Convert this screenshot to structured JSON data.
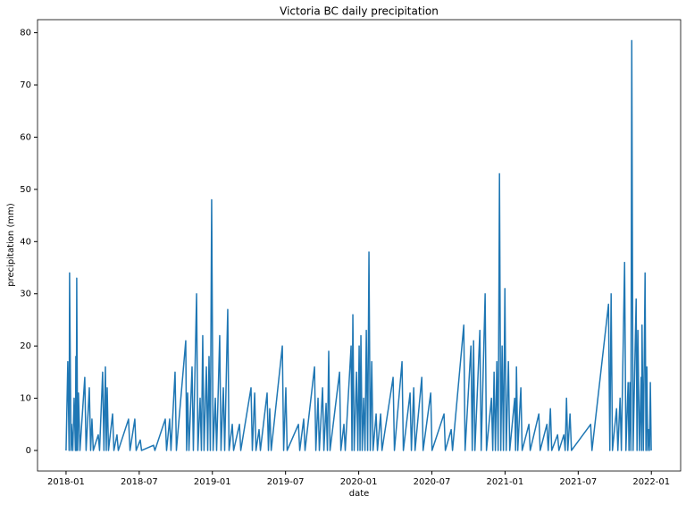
{
  "chart_data": {
    "type": "line",
    "title": "Victoria BC daily precipitation",
    "x_label": "date",
    "y_label": "precipitation (mm)",
    "x": [
      2018.0,
      2018.012,
      2018.021,
      2018.024,
      2018.034,
      2018.037,
      2018.046,
      2018.055,
      2018.064,
      2018.067,
      2018.07,
      2018.073,
      2018.079,
      2018.085,
      2018.095,
      2018.128,
      2018.137,
      2018.159,
      2018.168,
      2018.177,
      2018.186,
      2018.22,
      2018.229,
      2018.25,
      2018.259,
      2018.269,
      2018.275,
      2018.281,
      2018.29,
      2018.318,
      2018.327,
      2018.348,
      2018.357,
      2018.427,
      2018.437,
      2018.47,
      2018.479,
      2018.507,
      2018.516,
      2018.598,
      2018.607,
      2018.678,
      2018.687,
      2018.708,
      2018.717,
      2018.745,
      2018.754,
      2018.818,
      2018.824,
      2018.831,
      2018.84,
      2018.861,
      2018.87,
      2018.892,
      2018.901,
      2018.916,
      2018.925,
      2018.934,
      2018.943,
      2018.959,
      2018.968,
      2018.977,
      2018.986,
      2018.995,
      2019.005,
      2019.02,
      2019.029,
      2019.05,
      2019.059,
      2019.075,
      2019.084,
      2019.105,
      2019.114,
      2019.136,
      2019.145,
      2019.185,
      2019.194,
      2019.264,
      2019.273,
      2019.289,
      2019.298,
      2019.319,
      2019.328,
      2019.374,
      2019.383,
      2019.392,
      2019.402,
      2019.478,
      2019.487,
      2019.502,
      2019.511,
      2019.588,
      2019.597,
      2019.624,
      2019.633,
      2019.698,
      2019.707,
      2019.722,
      2019.731,
      2019.753,
      2019.762,
      2019.777,
      2019.786,
      2019.795,
      2019.804,
      2019.869,
      2019.878,
      2019.899,
      2019.908,
      2019.948,
      2019.954,
      2019.96,
      2019.969,
      2019.985,
      2019.994,
      2020.003,
      2020.009,
      2020.015,
      2020.024,
      2020.034,
      2020.043,
      2020.052,
      2020.061,
      2020.07,
      2020.079,
      2020.089,
      2020.098,
      2020.119,
      2020.128,
      2020.15,
      2020.159,
      2020.235,
      2020.244,
      2020.296,
      2020.305,
      2020.351,
      2020.36,
      2020.376,
      2020.385,
      2020.431,
      2020.44,
      2020.492,
      2020.501,
      2020.583,
      2020.592,
      2020.632,
      2020.641,
      2020.718,
      2020.727,
      2020.767,
      2020.776,
      2020.785,
      2020.794,
      2020.828,
      2020.837,
      2020.864,
      2020.873,
      2020.907,
      2020.916,
      2020.925,
      2020.934,
      2020.944,
      2020.953,
      2020.962,
      2020.971,
      2020.98,
      2020.989,
      2020.999,
      2021.008,
      2021.023,
      2021.032,
      2021.066,
      2021.072,
      2021.078,
      2021.087,
      2021.108,
      2021.117,
      2021.163,
      2021.172,
      2021.231,
      2021.24,
      2021.286,
      2021.295,
      2021.31,
      2021.319,
      2021.359,
      2021.368,
      2021.402,
      2021.411,
      2021.42,
      2021.429,
      2021.444,
      2021.454,
      2021.585,
      2021.594,
      2021.707,
      2021.716,
      2021.725,
      2021.734,
      2021.762,
      2021.771,
      2021.786,
      2021.795,
      2021.817,
      2021.826,
      2021.841,
      2021.847,
      2021.853,
      2021.86,
      2021.866,
      2021.875,
      2021.896,
      2021.902,
      2021.908,
      2021.918,
      2021.93,
      2021.933,
      2021.936,
      2021.945,
      2021.957,
      2021.963,
      2021.969,
      2021.975,
      2021.981,
      2021.987,
      2021.993,
      2021.999
    ],
    "values": [
      0,
      17,
      0,
      34,
      0,
      5,
      0,
      10,
      0,
      18,
      0,
      33,
      0,
      11,
      0,
      14,
      0,
      12,
      0,
      6,
      0,
      3,
      0,
      15,
      0,
      16,
      0,
      12,
      0,
      7,
      0,
      3,
      0,
      6,
      0,
      6,
      0,
      2,
      0,
      1,
      0,
      6,
      0,
      6,
      0,
      15,
      0,
      21,
      0,
      11,
      0,
      16,
      0,
      30,
      0,
      10,
      0,
      22,
      0,
      16,
      0,
      18,
      0,
      48,
      0,
      10,
      0,
      22,
      0,
      12,
      0,
      27,
      0,
      5,
      0,
      5,
      0,
      12,
      0,
      11,
      0,
      4,
      0,
      11,
      0,
      8,
      0,
      20,
      0,
      12,
      0,
      5,
      0,
      6,
      0,
      16,
      0,
      10,
      0,
      12,
      0,
      9,
      0,
      19,
      0,
      15,
      0,
      5,
      0,
      20,
      0,
      26,
      0,
      15,
      0,
      20,
      0,
      22,
      0,
      10,
      0,
      23,
      0,
      38,
      0,
      17,
      0,
      7,
      0,
      7,
      0,
      14,
      0,
      17,
      0,
      11,
      0,
      12,
      0,
      14,
      0,
      11,
      0,
      7,
      0,
      4,
      0,
      24,
      0,
      20,
      0,
      21,
      0,
      23,
      0,
      30,
      0,
      10,
      0,
      15,
      0,
      17,
      0,
      53,
      0,
      20,
      0,
      31,
      0,
      17,
      0,
      10,
      0,
      16,
      0,
      12,
      0,
      5,
      0,
      7,
      0,
      5,
      0,
      8,
      0,
      3,
      0,
      3,
      0,
      10,
      0,
      7,
      0,
      5,
      0,
      28,
      0,
      30,
      0,
      8,
      0,
      10,
      0,
      36,
      0,
      13,
      0,
      13,
      0,
      78.5,
      0,
      29,
      0,
      23,
      0,
      14,
      0,
      24,
      0,
      34,
      0,
      16,
      0,
      4,
      0,
      13,
      0
    ],
    "color": "#1f77b4",
    "xlim": [
      2017.805,
      2022.2
    ],
    "ylim": [
      -3.94,
      82.5
    ],
    "xticks": [
      {
        "value": 2018.0,
        "label": "2018-01"
      },
      {
        "value": 2018.5,
        "label": "2018-07"
      },
      {
        "value": 2019.0,
        "label": "2019-01"
      },
      {
        "value": 2019.5,
        "label": "2019-07"
      },
      {
        "value": 2020.0,
        "label": "2020-01"
      },
      {
        "value": 2020.5,
        "label": "2020-07"
      },
      {
        "value": 2021.0,
        "label": "2021-01"
      },
      {
        "value": 2021.5,
        "label": "2021-07"
      },
      {
        "value": 2022.0,
        "label": "2022-01"
      }
    ],
    "yticks": [
      0,
      10,
      20,
      30,
      40,
      50,
      60,
      70,
      80
    ]
  }
}
